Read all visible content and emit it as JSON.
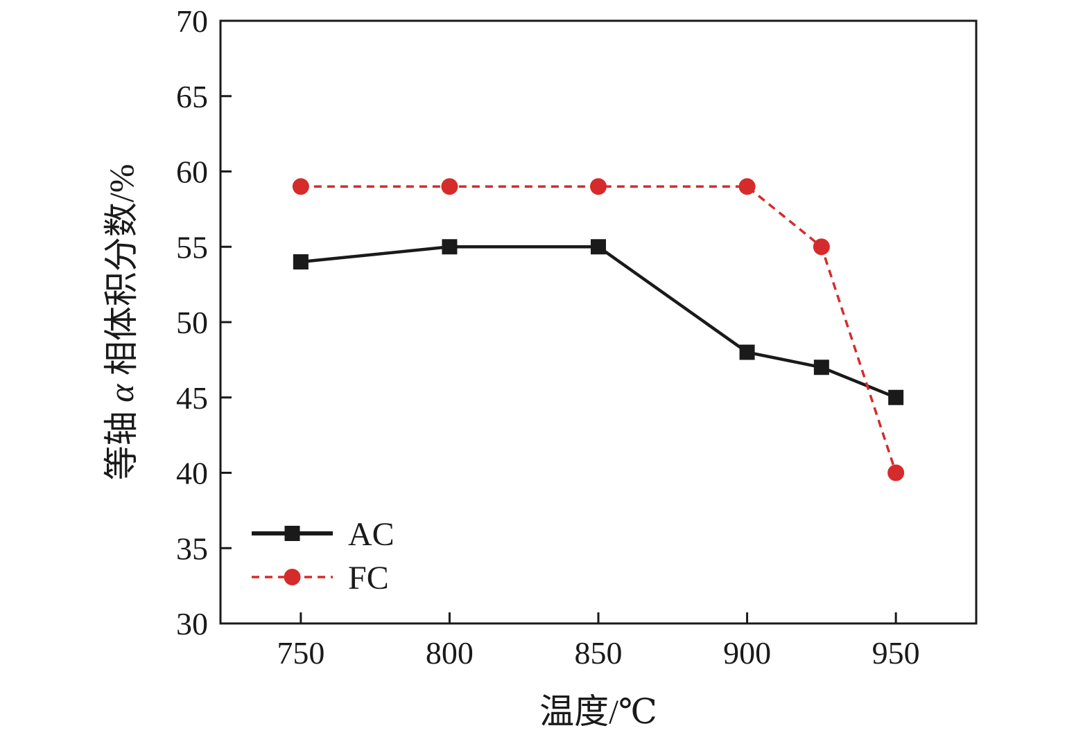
{
  "chart_data": {
    "type": "line",
    "x": [
      750,
      800,
      850,
      900,
      925,
      950
    ],
    "series": [
      {
        "name": "AC",
        "values": [
          54,
          55,
          55,
          48,
          47,
          45
        ],
        "color": "#1a1a1a",
        "marker": "square",
        "line_style": "solid"
      },
      {
        "name": "FC",
        "values": [
          59,
          59,
          59,
          59,
          55,
          40
        ],
        "color": "#d52b2b",
        "marker": "circle",
        "line_style": "dashed"
      }
    ],
    "title": "",
    "xlabel": "温度/℃",
    "ylabel": "等轴 α 相体积分数/%",
    "xlim": [
      723,
      977
    ],
    "ylim": [
      30,
      70
    ],
    "xticks": [
      750,
      800,
      850,
      900,
      950
    ],
    "yticks": [
      30,
      35,
      40,
      45,
      50,
      55,
      60,
      65,
      70
    ],
    "legend": {
      "position": "bottom-left",
      "entries": [
        "AC",
        "FC"
      ]
    },
    "grid": false,
    "frame_color": "#1a1a1a"
  }
}
